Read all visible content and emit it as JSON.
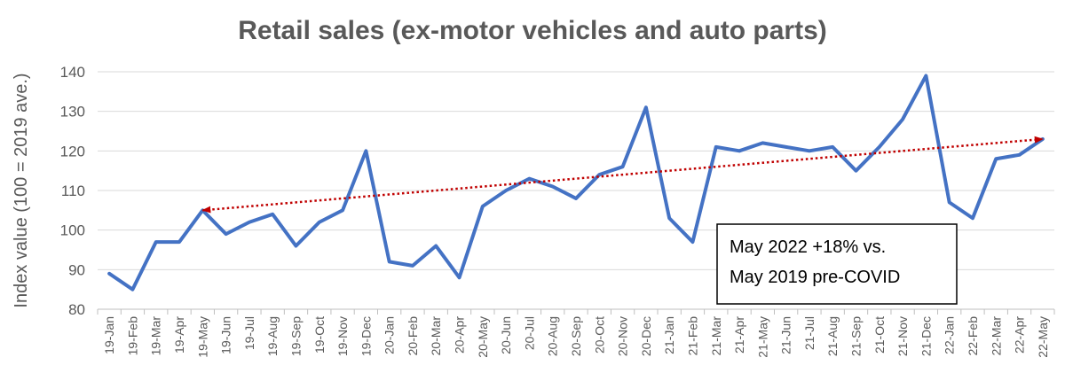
{
  "chart_data": {
    "type": "line",
    "title": "Retail sales (ex-motor vehicles and auto parts)",
    "ylabel": "Index value (100 = 2019 ave.)",
    "xlabel": "",
    "ylim": [
      80,
      140
    ],
    "yticks": [
      80,
      90,
      100,
      110,
      120,
      130,
      140
    ],
    "grid": true,
    "categories": [
      "19-Jan",
      "19-Feb",
      "19-Mar",
      "19-Apr",
      "19-May",
      "19-Jun",
      "19-Jul",
      "19-Aug",
      "19-Sep",
      "19-Oct",
      "19-Nov",
      "19-Dec",
      "20-Jan",
      "20-Feb",
      "20-Mar",
      "20-Apr",
      "20-May",
      "20-Jun",
      "20-Jul",
      "20-Aug",
      "20-Sep",
      "20-Oct",
      "20-Nov",
      "20-Dec",
      "21-Jan",
      "21-Feb",
      "21-Mar",
      "21-Apr",
      "21-May",
      "21-Jun",
      "21-Jul",
      "21-Aug",
      "21-Sep",
      "21-Oct",
      "21-Nov",
      "21-Dec",
      "22-Jan",
      "22-Feb",
      "22-Mar",
      "22-Apr",
      "22-May"
    ],
    "series": [
      {
        "color": "#4472c4",
        "values": [
          89,
          85,
          97,
          97,
          105,
          99,
          102,
          104,
          96,
          102,
          105,
          120,
          92,
          91,
          96,
          88,
          106,
          110,
          113,
          111,
          108,
          114,
          116,
          131,
          103,
          97,
          121,
          120,
          122,
          121,
          120,
          121,
          115,
          121,
          128,
          139,
          107,
          103,
          118,
          119,
          123
        ]
      }
    ],
    "trend_arrow": {
      "color": "#c00000",
      "from": {
        "category": "19-May",
        "value": 105
      },
      "to": {
        "category": "22-May",
        "value": 123
      }
    },
    "annotation": {
      "lines": [
        "May 2022 +18% vs.",
        "May 2019 pre-COVID"
      ]
    }
  }
}
